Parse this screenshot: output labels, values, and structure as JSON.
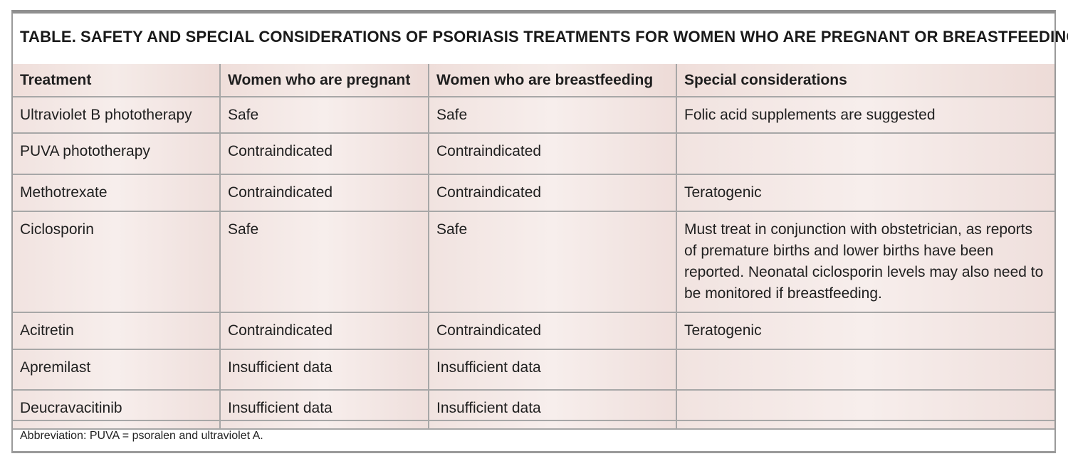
{
  "title": {
    "label": "TABLE.",
    "text": "SAFETY AND SPECIAL CONSIDERATIONS OF PSORIASIS TREATMENTS FOR WOMEN WHO ARE PREGNANT OR BREASTFEEDING"
  },
  "table": {
    "headers": [
      "Treatment",
      "Women who are pregnant",
      "Women who are breastfeeding",
      "Special considerations"
    ],
    "rows": [
      [
        "Ultraviolet B phototherapy",
        "Safe",
        "Safe",
        "Folic acid supplements are suggested"
      ],
      [
        "PUVA phototherapy",
        "Contraindicated",
        "Contraindicated",
        ""
      ],
      [
        "Methotrexate",
        "Contraindicated",
        "Contraindicated",
        "Teratogenic"
      ],
      [
        "Ciclosporin",
        "Safe",
        "Safe",
        "Must treat in conjunction with obstetrician, as reports of premature births and lower births have been reported. Neonatal ciclosporin levels may also need to be monitored if breastfeeding."
      ],
      [
        "Acitretin",
        "Contraindicated",
        "Contraindicated",
        "Teratogenic"
      ],
      [
        "Apremilast",
        "Insufficient data",
        "Insufficient data",
        ""
      ],
      [
        "Deucravacitinib",
        "Insufficient data",
        "Insufficient data",
        ""
      ]
    ]
  },
  "footnote": "Abbreviation: PUVA = psoralen and ultraviolet A."
}
